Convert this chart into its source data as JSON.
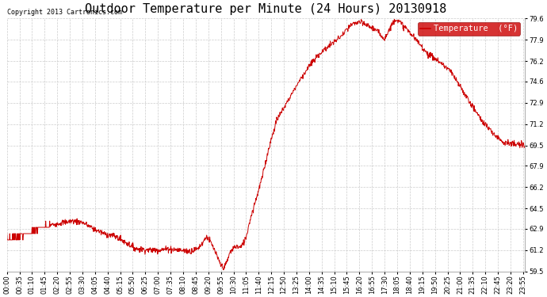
{
  "title": "Outdoor Temperature per Minute (24 Hours) 20130918",
  "copyright_text": "Copyright 2013 Cartronics.com",
  "legend_label": "Temperature  (°F)",
  "legend_bg": "#cc0000",
  "legend_text_color": "#ffffff",
  "line_color": "#cc0000",
  "background_color": "#ffffff",
  "grid_color": "#cccccc",
  "ylim": [
    59.5,
    79.6
  ],
  "yticks": [
    59.5,
    61.2,
    62.9,
    64.5,
    66.2,
    67.9,
    69.5,
    71.2,
    72.9,
    74.6,
    76.2,
    77.9,
    79.6
  ],
  "title_fontsize": 11,
  "tick_fontsize": 6.0,
  "copyright_fontsize": 6.0,
  "legend_fontsize": 7.5,
  "num_minutes": 1440,
  "x_tick_step": 35,
  "key_times": [
    0,
    30,
    60,
    100,
    140,
    180,
    210,
    240,
    270,
    300,
    330,
    360,
    390,
    420,
    450,
    480,
    510,
    530,
    545,
    555,
    560,
    565,
    570,
    575,
    580,
    585,
    590,
    595,
    600,
    605,
    610,
    620,
    635,
    650,
    655,
    660,
    665,
    675,
    690,
    710,
    730,
    750,
    780,
    810,
    840,
    870,
    900,
    930,
    955,
    960,
    975,
    990,
    1005,
    1020,
    1050,
    1080,
    1110,
    1140,
    1170,
    1200,
    1230,
    1260,
    1290,
    1320,
    1350,
    1380,
    1410,
    1439
  ],
  "key_temps": [
    62.1,
    62.3,
    62.5,
    63.0,
    63.3,
    63.5,
    63.4,
    62.9,
    62.5,
    62.3,
    61.8,
    61.3,
    61.2,
    61.2,
    61.3,
    61.2,
    61.1,
    61.3,
    61.8,
    62.3,
    62.1,
    61.9,
    61.6,
    61.3,
    61.0,
    60.6,
    60.3,
    60.0,
    59.8,
    59.9,
    60.1,
    61.0,
    61.5,
    61.4,
    61.6,
    61.9,
    62.2,
    63.5,
    65.0,
    67.0,
    69.5,
    71.5,
    73.0,
    74.5,
    75.8,
    76.8,
    77.5,
    78.2,
    79.0,
    79.1,
    79.3,
    79.2,
    79.0,
    78.8,
    78.0,
    79.6,
    78.8,
    77.8,
    76.8,
    76.2,
    75.5,
    74.2,
    72.8,
    71.5,
    70.5,
    69.8,
    69.6,
    69.5
  ]
}
